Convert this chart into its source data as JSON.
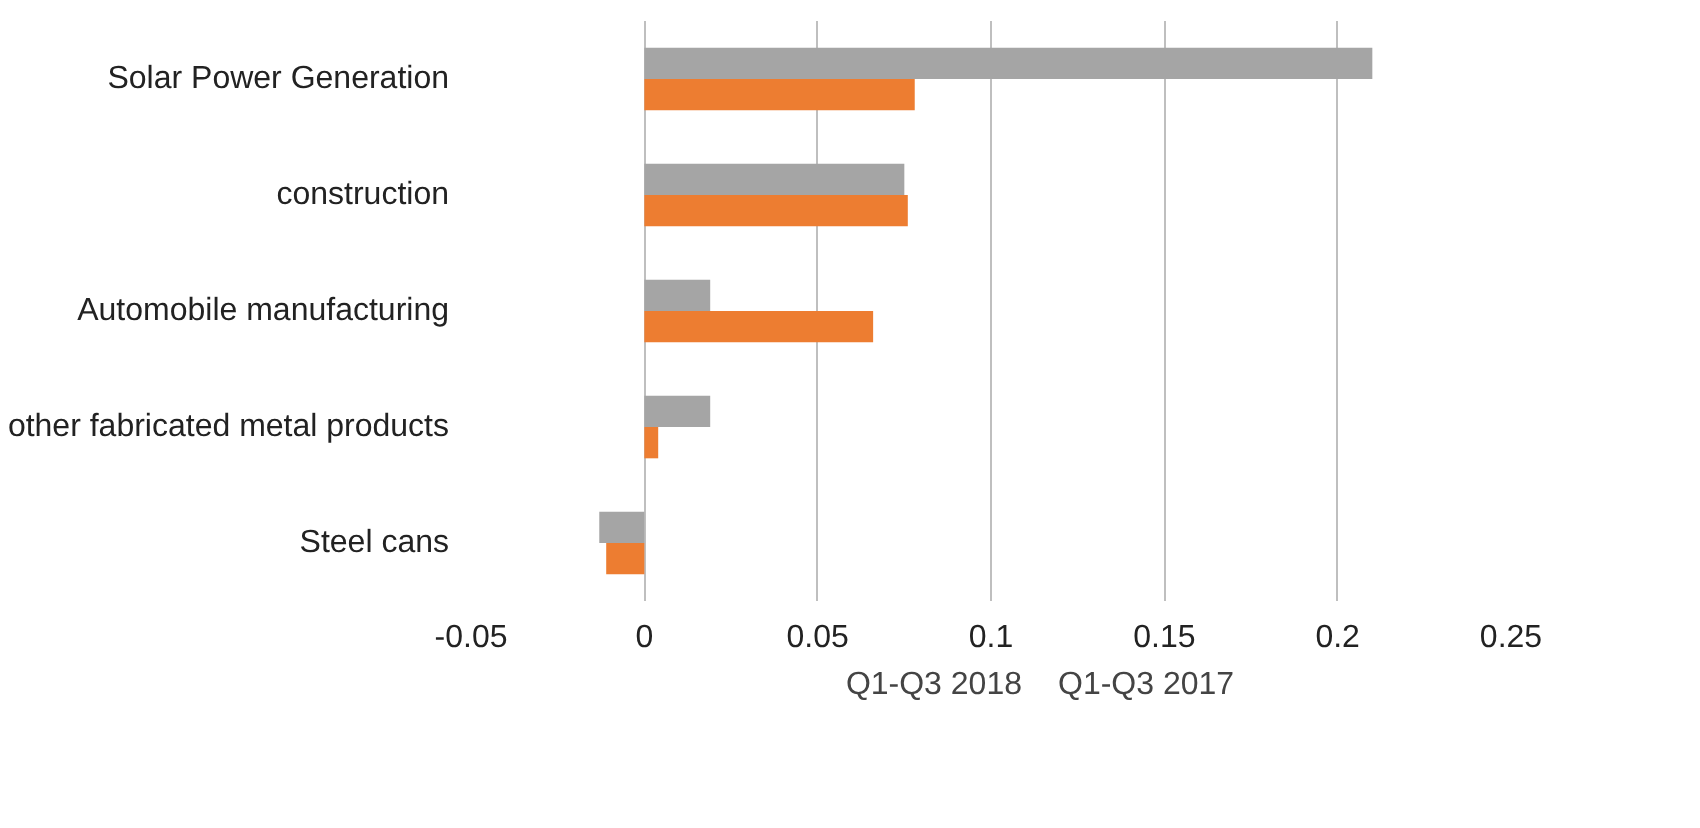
{
  "chart_data": {
    "type": "bar",
    "orientation": "horizontal",
    "categories": [
      "Solar Power Generation",
      "construction",
      "Automobile manufacturing",
      "other fabricated metal products",
      "Steel cans"
    ],
    "series": [
      {
        "name": "Q1-Q3 2018",
        "color": "#a5a5a5",
        "values": [
          0.21,
          0.075,
          0.019,
          0.019,
          -0.013
        ]
      },
      {
        "name": "Q1-Q3 2017",
        "color": "#ed7d31",
        "values": [
          0.078,
          0.076,
          0.066,
          0.004,
          -0.011
        ]
      }
    ],
    "xlim": [
      -0.05,
      0.25
    ],
    "xticks": [
      -0.05,
      0,
      0.05,
      0.1,
      0.15,
      0.2,
      0.25
    ],
    "grid": "x",
    "legend": "bottom"
  }
}
